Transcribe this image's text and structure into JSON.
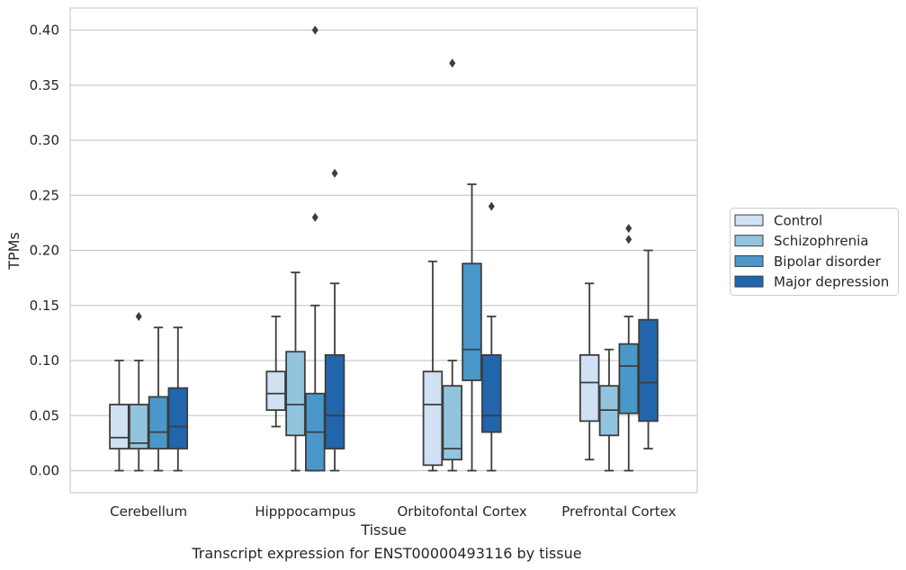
{
  "caption": "Transcript expression for ENST00000493116 by tissue",
  "chart_data": {
    "type": "boxplot",
    "xlabel": "Tissue",
    "ylabel": "TPMs",
    "ylim": [
      -0.02,
      0.42
    ],
    "yticks": [
      "0.00",
      "0.05",
      "0.10",
      "0.15",
      "0.20",
      "0.25",
      "0.30",
      "0.35",
      "0.40"
    ],
    "grid": true,
    "legend_position": "right",
    "categories": [
      "Cerebellum",
      "Hipppocampus",
      "Orbitofontal Cortex",
      "Prefrontal Cortex"
    ],
    "series": [
      {
        "name": "Control",
        "color": "#cfe1f2",
        "boxes": [
          {
            "whislo": 0.0,
            "q1": 0.02,
            "med": 0.03,
            "q3": 0.06,
            "whishi": 0.1,
            "fliers": []
          },
          {
            "whislo": 0.04,
            "q1": 0.055,
            "med": 0.07,
            "q3": 0.09,
            "whishi": 0.14,
            "fliers": []
          },
          {
            "whislo": 0.0,
            "q1": 0.005,
            "med": 0.06,
            "q3": 0.09,
            "whishi": 0.19,
            "fliers": []
          },
          {
            "whislo": 0.01,
            "q1": 0.045,
            "med": 0.08,
            "q3": 0.105,
            "whishi": 0.17,
            "fliers": []
          }
        ]
      },
      {
        "name": "Schizophrenia",
        "color": "#93c4de",
        "boxes": [
          {
            "whislo": 0.0,
            "q1": 0.02,
            "med": 0.025,
            "q3": 0.06,
            "whishi": 0.1,
            "fliers": [
              0.14
            ]
          },
          {
            "whislo": 0.0,
            "q1": 0.032,
            "med": 0.06,
            "q3": 0.108,
            "whishi": 0.18,
            "fliers": []
          },
          {
            "whislo": 0.0,
            "q1": 0.01,
            "med": 0.02,
            "q3": 0.077,
            "whishi": 0.1,
            "fliers": [
              0.37
            ]
          },
          {
            "whislo": 0.0,
            "q1": 0.032,
            "med": 0.055,
            "q3": 0.077,
            "whishi": 0.11,
            "fliers": []
          }
        ]
      },
      {
        "name": "Bipolar disorder",
        "color": "#4a98c9",
        "boxes": [
          {
            "whislo": 0.0,
            "q1": 0.02,
            "med": 0.035,
            "q3": 0.067,
            "whishi": 0.13,
            "fliers": []
          },
          {
            "whislo": 0.0,
            "q1": 0.0,
            "med": 0.035,
            "q3": 0.07,
            "whishi": 0.15,
            "fliers": [
              0.23,
              0.4
            ]
          },
          {
            "whislo": 0.0,
            "q1": 0.082,
            "med": 0.11,
            "q3": 0.188,
            "whishi": 0.26,
            "fliers": []
          },
          {
            "whislo": 0.0,
            "q1": 0.052,
            "med": 0.095,
            "q3": 0.115,
            "whishi": 0.14,
            "fliers": [
              0.21,
              0.22
            ]
          }
        ]
      },
      {
        "name": "Major depression",
        "color": "#2166ac",
        "boxes": [
          {
            "whislo": 0.0,
            "q1": 0.02,
            "med": 0.04,
            "q3": 0.075,
            "whishi": 0.13,
            "fliers": []
          },
          {
            "whislo": 0.0,
            "q1": 0.02,
            "med": 0.05,
            "q3": 0.105,
            "whishi": 0.17,
            "fliers": [
              0.27
            ]
          },
          {
            "whislo": 0.0,
            "q1": 0.035,
            "med": 0.05,
            "q3": 0.105,
            "whishi": 0.14,
            "fliers": [
              0.24
            ]
          },
          {
            "whislo": 0.02,
            "q1": 0.045,
            "med": 0.08,
            "q3": 0.137,
            "whishi": 0.2,
            "fliers": []
          }
        ]
      }
    ]
  }
}
